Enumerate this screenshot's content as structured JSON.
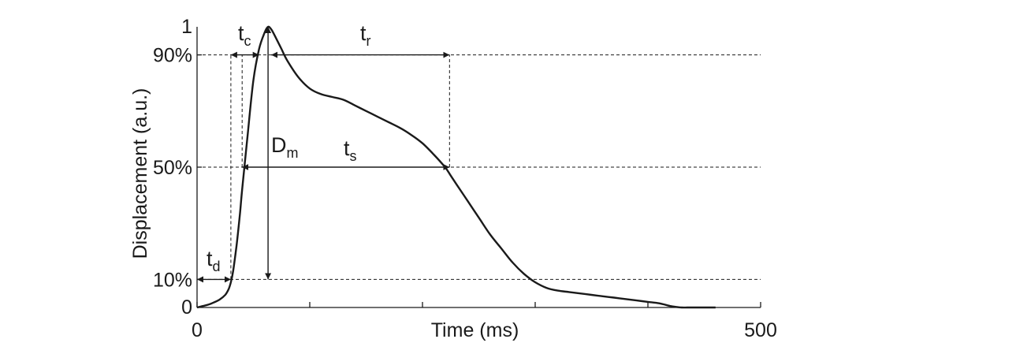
{
  "chart_data": {
    "type": "line",
    "xlabel": "Time (ms)",
    "ylabel": "Displacement (a.u.)",
    "xlim": [
      0,
      500
    ],
    "ylim": [
      0,
      1
    ],
    "x_ticks": [
      0,
      100,
      200,
      300,
      400,
      500
    ],
    "x_tick_labels": [
      "0",
      "",
      "",
      "",
      "",
      "500"
    ],
    "y_tick_labels": [
      {
        "value": 0,
        "label": "0"
      },
      {
        "value": 0.1,
        "label": "10%"
      },
      {
        "value": 0.5,
        "label": "50%"
      },
      {
        "value": 0.9,
        "label": "90%"
      },
      {
        "value": 1,
        "label": "1"
      }
    ],
    "reference_lines": [
      0.1,
      0.5,
      0.9
    ],
    "grid": false,
    "series": [
      {
        "x": [
          0,
          5,
          10,
          15,
          20,
          25,
          28,
          30,
          32,
          35,
          38,
          40,
          45,
          50,
          55,
          60,
          63,
          66,
          70,
          75,
          80,
          90,
          100,
          110,
          120,
          130,
          140,
          150,
          160,
          170,
          180,
          190,
          200,
          210,
          220,
          225,
          230,
          240,
          250,
          260,
          270,
          280,
          290,
          300,
          310,
          320,
          330,
          340,
          350,
          360,
          370,
          380,
          390,
          400,
          410,
          420,
          425,
          430,
          435,
          440,
          445,
          450,
          460
        ],
        "y": [
          0,
          0.005,
          0.01,
          0.018,
          0.028,
          0.045,
          0.065,
          0.09,
          0.13,
          0.22,
          0.33,
          0.42,
          0.62,
          0.81,
          0.92,
          0.98,
          1.0,
          0.99,
          0.96,
          0.92,
          0.88,
          0.82,
          0.78,
          0.76,
          0.75,
          0.74,
          0.72,
          0.7,
          0.68,
          0.66,
          0.64,
          0.615,
          0.585,
          0.545,
          0.5,
          0.47,
          0.44,
          0.38,
          0.32,
          0.26,
          0.21,
          0.16,
          0.12,
          0.09,
          0.07,
          0.06,
          0.055,
          0.05,
          0.045,
          0.04,
          0.035,
          0.03,
          0.025,
          0.02,
          0.015,
          0.005,
          0.002,
          0.0,
          0.0,
          0.0,
          0.0,
          0.0,
          0.0
        ]
      }
    ],
    "annotations": {
      "td": {
        "main": "t",
        "sub": "d",
        "x_from": 0,
        "x_to": 30,
        "y": 0.1
      },
      "tc": {
        "main": "t",
        "sub": "c",
        "x_from": 30,
        "x_to": 55,
        "y": 0.9
      },
      "tr": {
        "main": "t",
        "sub": "r",
        "x_from": 70,
        "x_to": 224,
        "y": 0.9
      },
      "ts": {
        "main": "t",
        "sub": "s",
        "x_from": 40,
        "x_to": 224,
        "y": 0.5
      },
      "Dm": {
        "main": "D",
        "sub": "m",
        "x": 63,
        "y_from": 0.1,
        "y_to": 1.0
      }
    }
  }
}
